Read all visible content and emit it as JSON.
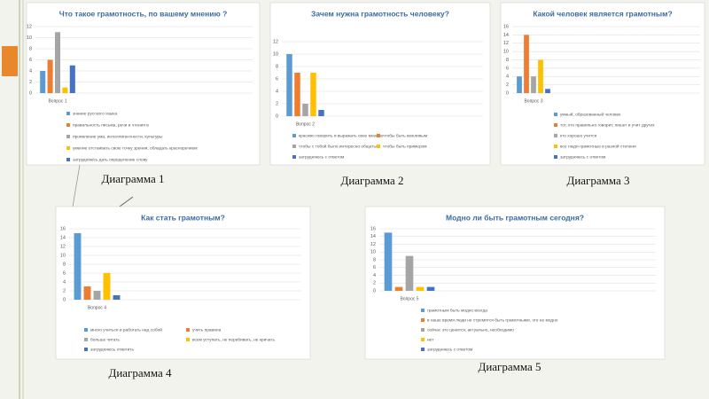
{
  "chart_data": [
    {
      "type": "bar",
      "title": "Что такое грамотность, по вашему мнению ?",
      "categories": [
        "Вопрос 1"
      ],
      "ylim": [
        0,
        12
      ],
      "yticks": [
        0,
        2,
        4,
        6,
        8,
        10,
        12
      ],
      "grid": true,
      "series": [
        {
          "name": "знание русского языка",
          "color": "#5b9bd5",
          "values": [
            4
          ]
        },
        {
          "name": "правильность письма, речи и чтения в",
          "color": "#ed7d31",
          "values": [
            6
          ]
        },
        {
          "name": "проявление ума, интеллигентности, культуры",
          "color": "#a5a5a5",
          "values": [
            11
          ]
        },
        {
          "name": "умение отстаивать свою точку зрения, обладать красноречием",
          "color": "#ffc000",
          "values": [
            1
          ]
        },
        {
          "name": "затрудняюсь дать определение слову",
          "color": "#4472c4",
          "values": [
            5
          ]
        }
      ]
    },
    {
      "type": "bar",
      "title": "Зачем нужна грамотность человеку?",
      "categories": [
        "Вопрос 2"
      ],
      "ylim": [
        0,
        12
      ],
      "yticks": [
        0,
        2,
        4,
        6,
        8,
        10,
        12
      ],
      "grid": true,
      "series": [
        {
          "name": "красиво говорить и выражать свое мнение",
          "color": "#5b9bd5",
          "values": [
            10
          ]
        },
        {
          "name": "чтобы быть вежливым",
          "color": "#ed7d31",
          "values": [
            7
          ]
        },
        {
          "name": "чтобы с тобой было интересно общаться",
          "color": "#a5a5a5",
          "values": [
            2
          ]
        },
        {
          "name": "чтобы быть примером",
          "color": "#ffc000",
          "values": [
            7
          ]
        },
        {
          "name": "затрудняюсь с ответом",
          "color": "#4472c4",
          "values": [
            1
          ]
        }
      ]
    },
    {
      "type": "bar",
      "title": "Какой человек является грамотным?",
      "categories": [
        "Вопрос 3"
      ],
      "ylim": [
        0,
        16
      ],
      "yticks": [
        0,
        2,
        4,
        6,
        8,
        10,
        12,
        14,
        16
      ],
      "grid": true,
      "series": [
        {
          "name": "умный, образованный человек",
          "color": "#5b9bd5",
          "values": [
            4
          ]
        },
        {
          "name": "тот, кто правильно говорит, пишет и учит других",
          "color": "#ed7d31",
          "values": [
            14
          ]
        },
        {
          "name": "кто хорошо учится",
          "color": "#a5a5a5",
          "values": [
            4
          ]
        },
        {
          "name": "все люди грамотные в разной степени",
          "color": "#ffc000",
          "values": [
            8
          ]
        },
        {
          "name": "затрудняюсь с ответом",
          "color": "#4472c4",
          "values": [
            1
          ]
        }
      ]
    },
    {
      "type": "bar",
      "title": "Как стать грамотным?",
      "categories": [
        "Вопрос 4"
      ],
      "ylim": [
        0,
        16
      ],
      "yticks": [
        0,
        2,
        4,
        6,
        8,
        10,
        12,
        14,
        16
      ],
      "grid": true,
      "series": [
        {
          "name": "много учиться и работать над собой",
          "color": "#5b9bd5",
          "values": [
            15
          ]
        },
        {
          "name": "учить правила",
          "color": "#ed7d31",
          "values": [
            3
          ]
        },
        {
          "name": "больше читать",
          "color": "#a5a5a5",
          "values": [
            2
          ]
        },
        {
          "name": "всем уступать, не перебивать, не кричать",
          "color": "#ffc000",
          "values": [
            6
          ]
        },
        {
          "name": "затрудняюсь ответить",
          "color": "#4472c4",
          "values": [
            1
          ]
        }
      ]
    },
    {
      "type": "bar",
      "title": "Модно ли быть грамотным сегодня?",
      "categories": [
        "Вопрос 5"
      ],
      "ylim": [
        0,
        16
      ],
      "yticks": [
        0,
        2,
        4,
        6,
        8,
        10,
        12,
        14,
        16
      ],
      "grid": true,
      "series": [
        {
          "name": "грамотным быть модно всегда",
          "color": "#5b9bd5",
          "values": [
            15
          ]
        },
        {
          "name": "в наше время люди не стремятся быть грамотными, это не модно",
          "color": "#ed7d31",
          "values": [
            1
          ]
        },
        {
          "name": "сейчас это ценится, актуально, необходимо",
          "color": "#a5a5a5",
          "values": [
            9
          ]
        },
        {
          "name": "нет",
          "color": "#ffc000",
          "values": [
            1
          ]
        },
        {
          "name": "затрудняюсь с ответом",
          "color": "#4472c4",
          "values": [
            1
          ]
        }
      ]
    }
  ],
  "captions": [
    "Диаграмма 1",
    "Диаграмма 2",
    "Диаграмма 3",
    "Диаграмма 4",
    "Диаграмма 5"
  ]
}
